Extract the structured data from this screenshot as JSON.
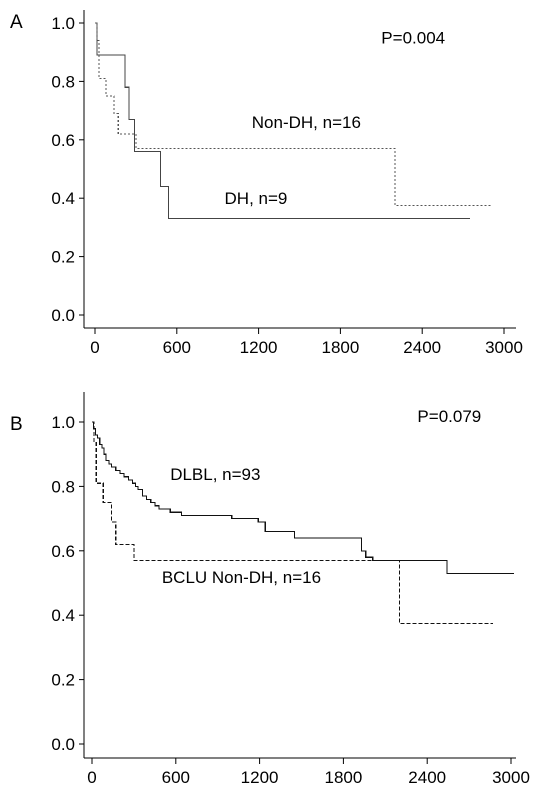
{
  "chart_data": [
    {
      "type": "line",
      "panel_label": "A",
      "title": "",
      "xlabel": "",
      "ylabel": "",
      "xlim": [
        0,
        3000
      ],
      "ylim": [
        0,
        1.0
      ],
      "x_ticks": [
        0,
        600,
        1200,
        1800,
        2400,
        3000
      ],
      "x_tick_labels": [
        "0",
        "600",
        "1200",
        "1800",
        "2400",
        "3000"
      ],
      "y_ticks": [
        0.0,
        0.2,
        0.4,
        0.6,
        0.8,
        1.0
      ],
      "y_tick_labels": [
        "0.0",
        "0.2",
        "0.4",
        "0.6",
        "0.8",
        "1.0"
      ],
      "grid": false,
      "annotations": [
        {
          "text": "P=0.004",
          "at": [
            2100,
            0.93
          ]
        },
        {
          "text": "Non-DH, n=16",
          "at": [
            1150,
            0.64
          ]
        },
        {
          "text": "DH, n=9",
          "at": [
            950,
            0.38
          ]
        }
      ],
      "series": [
        {
          "label": "DH, n=9",
          "style": "solid",
          "color": "#444444",
          "steps": [
            [
              0,
              1.0
            ],
            [
              15,
              0.89
            ],
            [
              220,
              0.78
            ],
            [
              250,
              0.67
            ],
            [
              290,
              0.56
            ],
            [
              480,
              0.44
            ],
            [
              540,
              0.33
            ],
            [
              2750,
              0.33
            ]
          ]
        },
        {
          "label": "Non-DH, n=16",
          "style": "dotted",
          "color": "#555555",
          "steps": [
            [
              0,
              1.0
            ],
            [
              15,
              0.94
            ],
            [
              30,
              0.81
            ],
            [
              80,
              0.75
            ],
            [
              140,
              0.69
            ],
            [
              170,
              0.62
            ],
            [
              280,
              0.62
            ],
            [
              300,
              0.57
            ],
            [
              2190,
              0.57
            ],
            [
              2200,
              0.375
            ],
            [
              2900,
              0.375
            ]
          ]
        }
      ]
    },
    {
      "type": "line",
      "panel_label": "B",
      "title": "",
      "xlabel": "",
      "ylabel": "",
      "xlim": [
        0,
        3000
      ],
      "ylim": [
        0,
        1.0
      ],
      "x_ticks": [
        0,
        600,
        1200,
        1800,
        2400,
        3000
      ],
      "x_tick_labels": [
        "0",
        "600",
        "1200",
        "1800",
        "2400",
        "3000"
      ],
      "y_ticks": [
        0.0,
        0.2,
        0.4,
        0.6,
        0.8,
        1.0
      ],
      "y_tick_labels": [
        "0.0",
        "0.2",
        "0.4",
        "0.6",
        "0.8",
        "1.0"
      ],
      "grid": false,
      "annotations": [
        {
          "text": "P=0.079",
          "at": [
            2330,
            1.0
          ]
        },
        {
          "text": "DLBL, n=93",
          "at": [
            560,
            0.82
          ]
        },
        {
          "text": "BCLU Non-DH, n=16",
          "at": [
            500,
            0.5
          ]
        }
      ],
      "series": [
        {
          "label": "DLBL, n=93",
          "style": "solid",
          "color": "#111111",
          "steps": [
            [
              0,
              1.0
            ],
            [
              10,
              0.98
            ],
            [
              25,
              0.96
            ],
            [
              40,
              0.95
            ],
            [
              55,
              0.93
            ],
            [
              70,
              0.92
            ],
            [
              85,
              0.9
            ],
            [
              100,
              0.88
            ],
            [
              120,
              0.87
            ],
            [
              140,
              0.86
            ],
            [
              170,
              0.85
            ],
            [
              200,
              0.84
            ],
            [
              230,
              0.83
            ],
            [
              260,
              0.82
            ],
            [
              290,
              0.81
            ],
            [
              310,
              0.8
            ],
            [
              330,
              0.79
            ],
            [
              360,
              0.77
            ],
            [
              390,
              0.76
            ],
            [
              420,
              0.75
            ],
            [
              450,
              0.74
            ],
            [
              480,
              0.73
            ],
            [
              560,
              0.72
            ],
            [
              640,
              0.71
            ],
            [
              1000,
              0.7
            ],
            [
              1190,
              0.69
            ],
            [
              1240,
              0.66
            ],
            [
              1450,
              0.64
            ],
            [
              1930,
              0.6
            ],
            [
              1960,
              0.58
            ],
            [
              2010,
              0.57
            ],
            [
              2540,
              0.53
            ],
            [
              3020,
              0.53
            ]
          ]
        },
        {
          "label": "BCLU Non-DH, n=16",
          "style": "dashed",
          "color": "#111111",
          "steps": [
            [
              0,
              1.0
            ],
            [
              15,
              0.94
            ],
            [
              30,
              0.81
            ],
            [
              80,
              0.75
            ],
            [
              140,
              0.69
            ],
            [
              170,
              0.62
            ],
            [
              280,
              0.62
            ],
            [
              300,
              0.57
            ],
            [
              2190,
              0.57
            ],
            [
              2200,
              0.375
            ],
            [
              2870,
              0.375
            ]
          ]
        }
      ]
    }
  ]
}
